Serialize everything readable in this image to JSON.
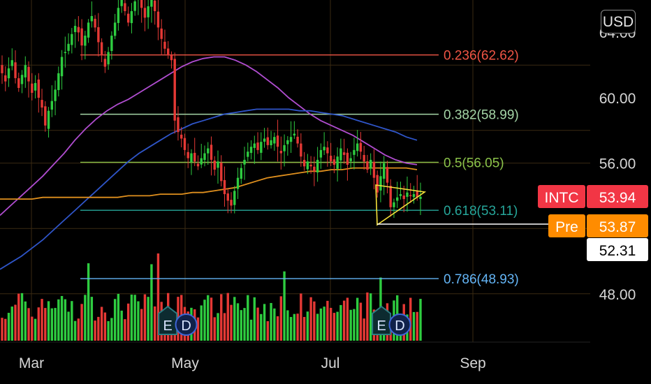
{
  "currency_button": "USD",
  "colors": {
    "background": "#000000",
    "grid": "#3a2a12",
    "up": "#2ecc40",
    "down": "#e53935",
    "ma_purple": "#b04dd0",
    "ma_blue": "#2f55c9",
    "ma_orange": "#e0901e",
    "triangle": "#f5e13a",
    "intc_label": "#f23645",
    "pre_label": "#ff8c00"
  },
  "chart_data": {
    "type": "candlestick",
    "title": "",
    "x_ticks": [
      "Mar",
      "May",
      "Jul",
      "Sep"
    ],
    "y_ticks": [
      "60.00",
      "56.00",
      "48.00"
    ],
    "ylim": [
      44.5,
      66.5
    ],
    "fib_levels": [
      {
        "label": "0.236(62.62)",
        "ratio": 0.236,
        "price": 62.62,
        "color": "#f05545"
      },
      {
        "label": "0.382(58.99)",
        "ratio": 0.382,
        "price": 58.99,
        "color": "#a5d6a7"
      },
      {
        "label": "0.5(56.05)",
        "ratio": 0.5,
        "price": 56.05,
        "color": "#8bc34a"
      },
      {
        "label": "0.618(53.11)",
        "ratio": 0.618,
        "price": 53.11,
        "color": "#26a69a"
      },
      {
        "label": "0.786(48.93)",
        "ratio": 0.786,
        "price": 48.93,
        "color": "#64b5f6"
      }
    ],
    "price_labels": [
      {
        "tag": "INTC",
        "value": "53.94",
        "price": 53.94
      },
      {
        "tag": "Pre",
        "value": "53.87",
        "price": 53.87
      },
      {
        "tag": "",
        "value": "52.31",
        "price": 52.31
      }
    ],
    "event_markers": [
      {
        "label": "E",
        "type": "earnings",
        "month_pos": 1.85
      },
      {
        "label": "D",
        "type": "dividend",
        "month_pos": 2.1
      },
      {
        "label": "E",
        "type": "earnings",
        "month_pos": 4.75
      },
      {
        "label": "D",
        "type": "dividend",
        "month_pos": 5.0
      }
    ],
    "closes": [
      61.5,
      61.0,
      61.8,
      62.3,
      61.2,
      60.6,
      61.4,
      62.0,
      61.0,
      60.3,
      60.9,
      60.0,
      59.4,
      58.3,
      59.2,
      59.8,
      60.5,
      61.5,
      62.5,
      62.8,
      63.3,
      63.9,
      64.4,
      64.0,
      63.2,
      63.8,
      64.6,
      65.0,
      64.3,
      63.4,
      62.6,
      61.9,
      62.8,
      63.8,
      64.6,
      65.5,
      66.0,
      65.3,
      64.6,
      65.3,
      65.9,
      66.2,
      65.5,
      64.9,
      65.6,
      66.0,
      65.3,
      64.3,
      63.6,
      63.0,
      62.6,
      62.3,
      58.6,
      57.9,
      57.5,
      56.8,
      56.3,
      56.6,
      56.1,
      55.8,
      56.3,
      56.6,
      56.9,
      56.2,
      55.6,
      56.1,
      54.9,
      54.1,
      53.7,
      53.4,
      54.3,
      55.1,
      55.7,
      56.2,
      56.7,
      57.0,
      57.2,
      56.8,
      57.3,
      57.5,
      57.1,
      57.4,
      57.6,
      57.0,
      56.6,
      57.1,
      57.4,
      57.6,
      57.8,
      57.2,
      56.4,
      55.8,
      56.1,
      55.8,
      55.5,
      56.2,
      56.8,
      57.0,
      56.6,
      56.1,
      55.9,
      56.4,
      56.9,
      56.5,
      55.9,
      56.3,
      56.8,
      57.2,
      56.7,
      56.1,
      55.6,
      56.2,
      55.1,
      54.2,
      55.2,
      56.0,
      54.8,
      53.3,
      53.6,
      53.9,
      54.1,
      53.8,
      54.2,
      54.0,
      54.1,
      53.9,
      53.94
    ],
    "series": [
      {
        "name": "",
        "color": "#b04dd0",
        "values": [
          52.8,
          53.4,
          54.0,
          54.6,
          55.2,
          55.9,
          56.6,
          57.4,
          58.1,
          58.7,
          59.2,
          59.6,
          59.9,
          60.3,
          60.7,
          61.1,
          61.5,
          61.9,
          62.2,
          62.4,
          62.5,
          62.5,
          62.3,
          62.0,
          61.6,
          61.1,
          60.6,
          60.0,
          59.5,
          59.0,
          58.6,
          58.3,
          58.0,
          57.7,
          57.3,
          56.9,
          56.5,
          56.2,
          56.0,
          55.9
        ]
      },
      {
        "name": "",
        "color": "#2f55c9",
        "values": [
          49.5,
          49.9,
          50.3,
          50.8,
          51.3,
          51.9,
          52.5,
          53.1,
          53.7,
          54.3,
          54.9,
          55.5,
          56.1,
          56.6,
          57.0,
          57.4,
          57.8,
          58.1,
          58.4,
          58.6,
          58.8,
          59.0,
          59.1,
          59.2,
          59.3,
          59.3,
          59.3,
          59.3,
          59.2,
          59.2,
          59.1,
          59.0,
          58.9,
          58.7,
          58.5,
          58.3,
          58.1,
          57.9,
          57.6,
          57.4
        ]
      },
      {
        "name": "",
        "color": "#e0901e",
        "values": [
          53.8,
          53.8,
          53.8,
          53.8,
          53.9,
          53.9,
          53.9,
          53.9,
          53.9,
          53.9,
          53.9,
          53.9,
          54.0,
          54.0,
          54.0,
          54.1,
          54.1,
          54.1,
          54.2,
          54.2,
          54.3,
          54.4,
          54.5,
          54.7,
          54.9,
          55.1,
          55.2,
          55.3,
          55.4,
          55.5,
          55.5,
          55.6,
          55.6,
          55.7,
          55.7,
          55.7,
          55.7,
          55.7,
          55.7,
          55.6
        ]
      }
    ]
  }
}
